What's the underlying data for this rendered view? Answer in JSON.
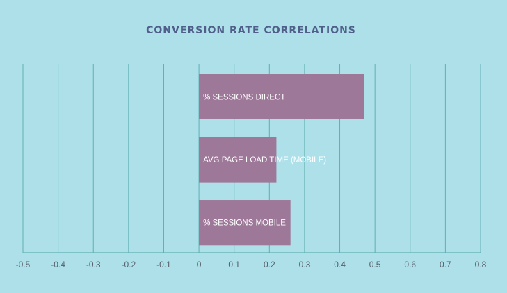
{
  "chart_data": {
    "type": "bar",
    "orientation": "horizontal",
    "title": "CONVERSION RATE CORRELATIONS",
    "xlabel": "",
    "ylabel": "",
    "xlim": [
      -0.5,
      0.8
    ],
    "xticks": [
      -0.5,
      -0.4,
      -0.3,
      -0.2,
      -0.1,
      0,
      0.1,
      0.2,
      0.3,
      0.4,
      0.5,
      0.6,
      0.7,
      0.8
    ],
    "xtick_labels": [
      "-0.5",
      "-0.4",
      "-0.3",
      "-0.2",
      "-0.1",
      "0",
      "0.1",
      "0.2",
      "0.3",
      "0.4",
      "0.5",
      "0.6",
      "0.7",
      "0.8"
    ],
    "categories": [
      "% SESSIONS DIRECT",
      "AVG PAGE LOAD TIME (MOBILE)",
      "% SESSIONS MOBILE"
    ],
    "values": [
      0.47,
      0.22,
      0.26
    ],
    "grid": true,
    "legend": "none",
    "colors": {
      "background": "#aee0ea",
      "bar": "#9e7899",
      "grid": "#5fb0b0",
      "axis": "#5fb0b0",
      "title": "#4f5f8a",
      "tick_text": "#55606a",
      "bar_text": "#ffffff"
    }
  }
}
